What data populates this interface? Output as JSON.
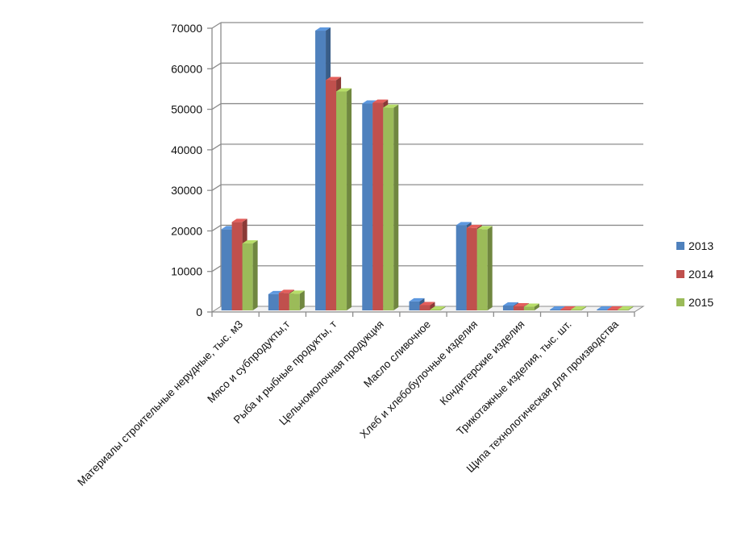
{
  "chart_data": {
    "type": "bar",
    "categories": [
      "Материалы строительные нерудные, тыс. м3",
      "Мясо и субпродукты,т",
      "Рыба и рыбные продукты, т",
      "Цельномолочная продукция",
      "Масло сливочное",
      "Хлеб и хлебобулочные изделия",
      "Кондитерские  изделия",
      "Трикотажные изделия, тыс. шт.",
      "Щипа технологическая для производства"
    ],
    "series": [
      {
        "name": "2013",
        "color": "#4F81BD",
        "values": [
          20000,
          4000,
          69000,
          51000,
          2200,
          21000,
          1200,
          100,
          100
        ]
      },
      {
        "name": "2014",
        "color": "#C0504D",
        "values": [
          21800,
          4300,
          56800,
          51200,
          1300,
          20300,
          1000,
          100,
          100
        ]
      },
      {
        "name": "2015",
        "color": "#9BBB59",
        "values": [
          16500,
          4100,
          54000,
          50000,
          200,
          20000,
          900,
          100,
          100
        ]
      }
    ],
    "yticks": [
      "0",
      "10000",
      "20000",
      "30000",
      "40000",
      "50000",
      "60000",
      "70000"
    ],
    "ylim": [
      0,
      70000
    ],
    "grid": true,
    "legend_position": "right",
    "style": "3d-clustered-column"
  }
}
